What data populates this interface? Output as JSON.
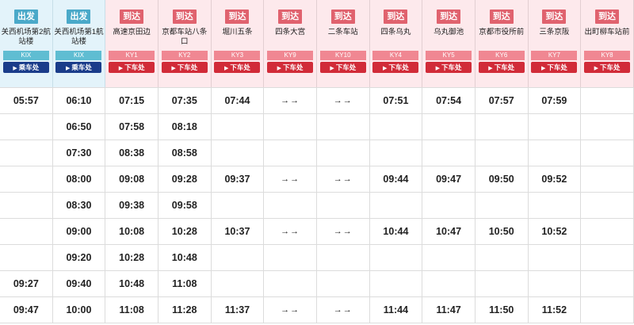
{
  "stations": [
    {
      "type": "dep",
      "badge": "出发",
      "name": "关西机场第2航站楼",
      "code": "KIX",
      "button": "乘车处"
    },
    {
      "type": "dep",
      "badge": "出发",
      "name": "关西机场第1航站楼",
      "code": "KIX",
      "button": "乘车处"
    },
    {
      "type": "arr",
      "badge": "到达",
      "name": "高速京田边",
      "code": "KY1",
      "button": "下车处"
    },
    {
      "type": "arr",
      "badge": "到达",
      "name": "京都车站八条口",
      "code": "KY2",
      "button": "下车处"
    },
    {
      "type": "arr",
      "badge": "到达",
      "name": "堀川五条",
      "code": "KY3",
      "button": "下车处"
    },
    {
      "type": "arr",
      "badge": "到达",
      "name": "四条大宫",
      "code": "KY9",
      "button": "下车处"
    },
    {
      "type": "arr",
      "badge": "到达",
      "name": "二条车站",
      "code": "KY10",
      "button": "下车处"
    },
    {
      "type": "arr",
      "badge": "到达",
      "name": "四条乌丸",
      "code": "KY4",
      "button": "下车处"
    },
    {
      "type": "arr",
      "badge": "到达",
      "name": "乌丸御池",
      "code": "KY5",
      "button": "下车处"
    },
    {
      "type": "arr",
      "badge": "到达",
      "name": "京都市役所前",
      "code": "KY6",
      "button": "下车处"
    },
    {
      "type": "arr",
      "badge": "到达",
      "name": "三条京阪",
      "code": "KY7",
      "button": "下车处"
    },
    {
      "type": "arr",
      "badge": "到达",
      "name": "出町柳车站前",
      "code": "KY8",
      "button": "下车处"
    }
  ],
  "rows": [
    [
      "05:57",
      "06:10",
      "07:15",
      "07:35",
      "07:44",
      "→→",
      "→→",
      "07:51",
      "07:54",
      "07:57",
      "07:59",
      ""
    ],
    [
      "",
      "06:50",
      "07:58",
      "08:18",
      "",
      "",
      "",
      "",
      "",
      "",
      "",
      ""
    ],
    [
      "",
      "07:30",
      "08:38",
      "08:58",
      "",
      "",
      "",
      "",
      "",
      "",
      "",
      ""
    ],
    [
      "",
      "08:00",
      "09:08",
      "09:28",
      "09:37",
      "→→",
      "→→",
      "09:44",
      "09:47",
      "09:50",
      "09:52",
      ""
    ],
    [
      "",
      "08:30",
      "09:38",
      "09:58",
      "",
      "",
      "",
      "",
      "",
      "",
      "",
      ""
    ],
    [
      "",
      "09:00",
      "10:08",
      "10:28",
      "10:37",
      "→→",
      "→→",
      "10:44",
      "10:47",
      "10:50",
      "10:52",
      ""
    ],
    [
      "",
      "09:20",
      "10:28",
      "10:48",
      "",
      "",
      "",
      "",
      "",
      "",
      "",
      ""
    ],
    [
      "09:27",
      "09:40",
      "10:48",
      "11:08",
      "",
      "",
      "",
      "",
      "",
      "",
      "",
      ""
    ],
    [
      "09:47",
      "10:00",
      "11:08",
      "11:28",
      "11:37",
      "→→",
      "→→",
      "11:44",
      "11:47",
      "11:50",
      "11:52",
      ""
    ]
  ],
  "colors": {
    "dep_bg": "#e3f3fa",
    "dep_badge": "#4aa9c9",
    "dep_code": "#5fbdd2",
    "dep_button": "#1a3c8a",
    "arr_bg": "#fde9ec",
    "arr_badge": "#e0626e",
    "arr_code": "#f08792",
    "arr_button": "#d12b38"
  },
  "icons": {
    "button_marker": "triangle-right-icon"
  }
}
